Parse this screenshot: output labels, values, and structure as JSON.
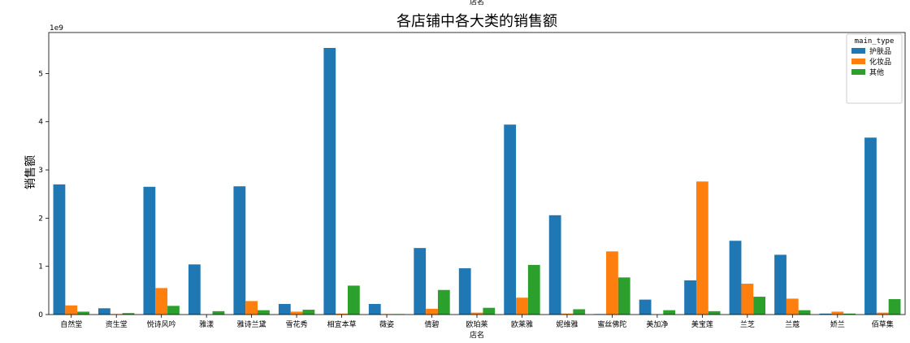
{
  "chart_data": {
    "type": "bar",
    "title": "各店铺中各大类的销售额",
    "top_label": "店名",
    "xlabel": "店名",
    "ylabel": "销售额",
    "y_multiplier": "1e9",
    "ylim": [
      0,
      5.85
    ],
    "yticks": [
      0,
      1,
      2,
      3,
      4,
      5
    ],
    "grid": false,
    "legend": {
      "title": "main_type",
      "position": "top-right"
    },
    "categories": [
      "自然堂",
      "资生堂",
      "悦诗风吟",
      "雅漾",
      "雅诗兰黛",
      "雪花秀",
      "相宜本草",
      "薇姿",
      "倩碧",
      "欧珀莱",
      "欧莱雅",
      "妮维雅",
      "蜜丝佛陀",
      "美加净",
      "美宝莲",
      "兰芝",
      "兰蔻",
      "娇兰",
      "佰草集"
    ],
    "series": [
      {
        "name": "护肤品",
        "color": "#1f77b4",
        "values": [
          2.7,
          0.13,
          2.65,
          1.04,
          2.66,
          0.22,
          5.53,
          0.22,
          1.38,
          0.96,
          3.94,
          2.06,
          0.01,
          0.31,
          0.71,
          1.53,
          1.24,
          0.02,
          3.67
        ]
      },
      {
        "name": "化妆品",
        "color": "#ff7f0e",
        "values": [
          0.19,
          0.01,
          0.55,
          0.0,
          0.28,
          0.06,
          0.02,
          0.01,
          0.12,
          0.04,
          0.35,
          0.02,
          1.31,
          0.0,
          2.76,
          0.64,
          0.33,
          0.06,
          0.04
        ]
      },
      {
        "name": "其他",
        "color": "#2ca02c",
        "values": [
          0.06,
          0.03,
          0.18,
          0.07,
          0.09,
          0.1,
          0.6,
          0.01,
          0.51,
          0.14,
          1.03,
          0.11,
          0.77,
          0.09,
          0.07,
          0.37,
          0.09,
          0.02,
          0.32
        ]
      }
    ]
  }
}
